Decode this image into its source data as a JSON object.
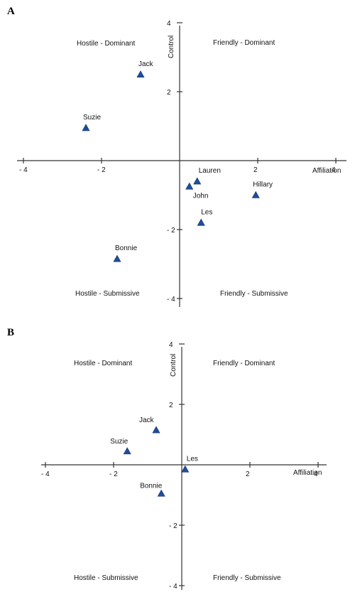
{
  "chart_data": [
    {
      "type": "scatter",
      "panel_label": "A",
      "xlabel": "Affiliation",
      "ylabel": "Control",
      "xlim": [
        -4,
        4
      ],
      "ylim": [
        -4,
        4
      ],
      "x_ticks": [
        -4,
        -2,
        2,
        4
      ],
      "x_tick_labels": [
        "- 4",
        "- 2",
        "2",
        "4"
      ],
      "y_ticks": [
        4,
        2,
        -2,
        -4
      ],
      "y_tick_labels": [
        "4",
        "2",
        "- 2",
        "- 4"
      ],
      "grid": false,
      "marker_color": "#1f4e9c",
      "quadrants": {
        "top_left": "Hostile - Dominant",
        "top_right": "Friendly - Dominant",
        "bottom_left": "Hostile - Submissive",
        "bottom_right": "Friendly - Submissive"
      },
      "points": [
        {
          "label": "Jack",
          "x": -1.0,
          "y": 2.5
        },
        {
          "label": "Suzie",
          "x": -2.4,
          "y": 0.95
        },
        {
          "label": "Lauren",
          "x": 0.45,
          "y": -0.6
        },
        {
          "label": "John",
          "x": 0.25,
          "y": -0.75
        },
        {
          "label": "Hillary",
          "x": 1.95,
          "y": -1.0
        },
        {
          "label": "Les",
          "x": 0.55,
          "y": -1.8
        },
        {
          "label": "Bonnie",
          "x": -1.6,
          "y": -2.85
        }
      ]
    },
    {
      "type": "scatter",
      "panel_label": "B",
      "xlabel": "Affiliation",
      "ylabel": "Control",
      "xlim": [
        -4,
        4
      ],
      "ylim": [
        -4,
        4
      ],
      "x_ticks": [
        -4,
        -2,
        2,
        4
      ],
      "x_tick_labels": [
        "- 4",
        "- 2",
        "2",
        "4"
      ],
      "y_ticks": [
        4,
        2,
        -2,
        -4
      ],
      "y_tick_labels": [
        "4",
        "2",
        "- 2",
        "- 4"
      ],
      "grid": false,
      "marker_color": "#1f4e9c",
      "quadrants": {
        "top_left": "Hostile - Dominant",
        "top_right": "Friendly - Dominant",
        "bottom_left": "Hostile - Submissive",
        "bottom_right": "Friendly - Submissive"
      },
      "points": [
        {
          "label": "Jack",
          "x": -0.75,
          "y": 1.15
        },
        {
          "label": "Suzie",
          "x": -1.6,
          "y": 0.45
        },
        {
          "label": "Les",
          "x": 0.1,
          "y": -0.15
        },
        {
          "label": "Bonnie",
          "x": -0.6,
          "y": -0.95
        }
      ]
    }
  ]
}
